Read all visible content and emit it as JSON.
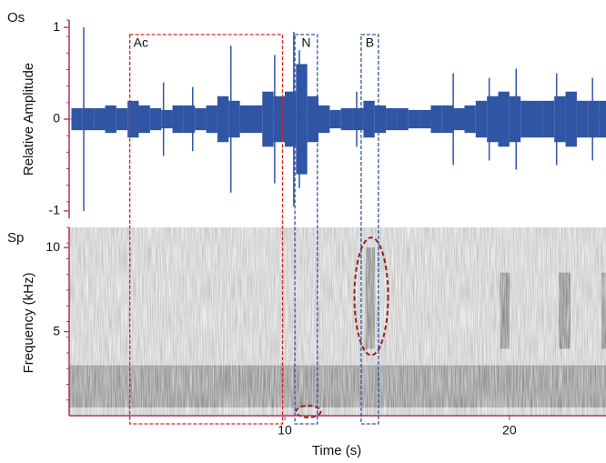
{
  "chart_data": [
    {
      "type": "oscillogram",
      "panel_label": "Os",
      "ylabel": "Relative Amplitude",
      "xlim": [
        0.4,
        24.3
      ],
      "ylim": [
        -1.08,
        1.08
      ],
      "yticks": [
        -1,
        0,
        1
      ],
      "color": "#2f55a4",
      "x": [
        0.5,
        1,
        1.5,
        2,
        2.5,
        3,
        3.5,
        4,
        4.5,
        5,
        5.5,
        6,
        6.5,
        7,
        7.5,
        8,
        8.5,
        9,
        9.5,
        10,
        10.5,
        11,
        11.5,
        12,
        12.5,
        13,
        13.5,
        14,
        14.5,
        15,
        15.5,
        16,
        16.5,
        17,
        17.5,
        18,
        18.5,
        19,
        19.5,
        20,
        20.5,
        21,
        21.5,
        22,
        22.5,
        23,
        23.5,
        24
      ],
      "values": [
        0.12,
        0.12,
        0.12,
        0.15,
        0.12,
        0.2,
        0.15,
        0.12,
        0.1,
        0.15,
        0.15,
        0.12,
        0.15,
        0.25,
        0.2,
        0.15,
        0.15,
        0.3,
        0.25,
        0.3,
        0.6,
        0.25,
        0.15,
        0.1,
        0.12,
        0.12,
        0.2,
        0.15,
        0.12,
        0.12,
        0.1,
        0.1,
        0.15,
        0.15,
        0.12,
        0.15,
        0.2,
        0.25,
        0.3,
        0.25,
        0.2,
        0.2,
        0.2,
        0.25,
        0.3,
        0.2,
        0.2,
        0.2
      ],
      "spikes": {
        "x": [
          1.05,
          4.6,
          5.9,
          7.6,
          9.55,
          10.4,
          10.65,
          13.2,
          17.5,
          19.1,
          20.3,
          22.1,
          23.7
        ],
        "values": [
          1,
          0.4,
          0.35,
          0.8,
          0.7,
          0.95,
          0.75,
          0.3,
          0.5,
          0.45,
          0.55,
          0.5,
          0.45
        ]
      }
    },
    {
      "type": "spectrogram",
      "panel_label": "Sp",
      "ylabel": "Frequency (kHz)",
      "xlabel": "Time (s)",
      "xlim": [
        0.4,
        24.3
      ],
      "ylim": [
        0,
        11.2
      ],
      "xticks": [
        10,
        20
      ],
      "yticks": [
        5,
        10
      ],
      "regions": [
        {
          "x": [
            0.4,
            24.3
          ],
          "y": [
            0.5,
            3
          ],
          "level": 0.45
        },
        {
          "x": [
            13.6,
            14.0
          ],
          "y": [
            4,
            10
          ],
          "level": 0.5
        },
        {
          "x": [
            19.6,
            20.0
          ],
          "y": [
            4,
            8.5
          ],
          "level": 0.55
        },
        {
          "x": [
            22.2,
            22.7
          ],
          "y": [
            4,
            8.5
          ],
          "level": 0.55
        },
        {
          "x": [
            24.1,
            24.3
          ],
          "y": [
            4,
            8.5
          ],
          "level": 0.5
        }
      ],
      "ellipses": [
        {
          "x": [
            13.1,
            14.6
          ],
          "y": [
            3.6,
            10.6
          ],
          "color": "#9a1c1c"
        },
        {
          "x": [
            10.5,
            11.6
          ],
          "y": [
            -0.1,
            0.6
          ],
          "color": "#9a1c1c"
        }
      ]
    },
    {
      "type": "annotations",
      "boxes": [
        {
          "label": "Ac",
          "x": [
            3.1,
            9.9
          ],
          "color": "#e02020"
        },
        {
          "label": "N",
          "x": [
            10.45,
            11.45
          ],
          "color": "#2f55a4"
        },
        {
          "label": "B",
          "x": [
            13.4,
            14.17
          ],
          "color": "#2f55a4"
        }
      ]
    }
  ]
}
